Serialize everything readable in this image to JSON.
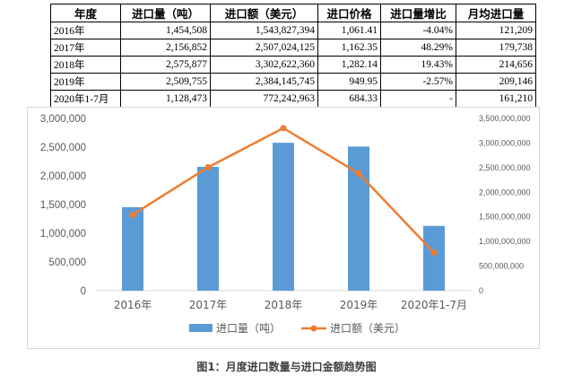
{
  "table": {
    "headers": [
      "年度",
      "进口量（吨）",
      "进口额（美元）",
      "进口价格",
      "进口量增比",
      "月均进口量"
    ],
    "rows": [
      [
        "2016年",
        "1,454,508",
        "1,543,827,394",
        "1,061.41",
        "-4.04%",
        "121,209"
      ],
      [
        "2017年",
        "2,156,852",
        "2,507,024,125",
        "1,162.35",
        "48.29%",
        "179,738"
      ],
      [
        "2018年",
        "2,575,877",
        "3,302,622,360",
        "1,282.14",
        "19.43%",
        "214,656"
      ],
      [
        "2019年",
        "2,509,755",
        "2,384,145,745",
        "949.95",
        "-2.57%",
        "209,146"
      ],
      [
        "2020年1-7月",
        "1,128,473",
        "772,242,963",
        "684.33",
        "-",
        "161,210"
      ]
    ]
  },
  "chart_data": {
    "type": "bar",
    "categories": [
      "2016年",
      "2017年",
      "2018年",
      "2019年",
      "2020年1-7月"
    ],
    "series": [
      {
        "name": "进口量（吨）",
        "type": "bar",
        "axis": "left",
        "color": "#5b9bd5",
        "values": [
          1454508,
          2156852,
          2575877,
          2509755,
          1128473
        ]
      },
      {
        "name": "进口额（美元）",
        "type": "line",
        "axis": "right",
        "color": "#ed7d31",
        "values": [
          1543827394,
          2507024125,
          3302622360,
          2384145745,
          772242963
        ]
      }
    ],
    "y_left": {
      "ylim": [
        0,
        3000000
      ],
      "ticks": [
        0,
        500000,
        1000000,
        1500000,
        2000000,
        2500000,
        3000000
      ],
      "tick_labels": [
        "0",
        "500,000",
        "1,000,000",
        "1,500,000",
        "2,000,000",
        "2,500,000",
        "3,000,000"
      ]
    },
    "y_right": {
      "ylim": [
        0,
        3500000000
      ],
      "ticks": [
        0,
        500000000,
        1000000000,
        1500000000,
        2000000000,
        2500000000,
        3000000000,
        3500000000
      ],
      "tick_labels": [
        "0",
        "500,000,000",
        "1,000,000,000",
        "1,500,000,000",
        "2,000,000,000",
        "2,500,000,000",
        "3,000,000,000",
        "3,500,000,000"
      ]
    },
    "grid": false,
    "legend_position": "bottom"
  },
  "caption": "图1：月度进口数量与进口金额趋势图"
}
